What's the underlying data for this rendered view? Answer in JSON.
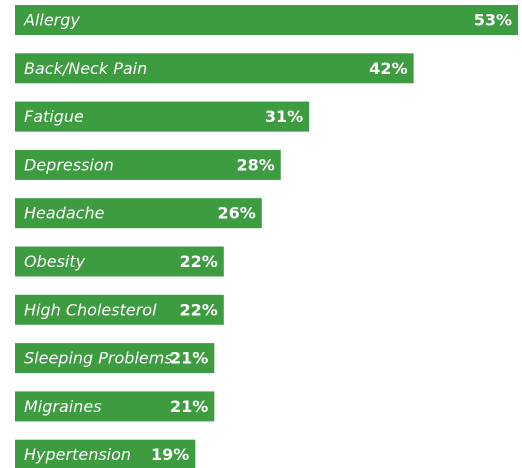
{
  "chart_data": {
    "type": "bar",
    "orientation": "horizontal",
    "categories": [
      "Allergy",
      "Back/Neck Pain",
      "Fatigue",
      "Depression",
      "Headache",
      "Obesity",
      "High Cholesterol",
      "Sleeping Problems",
      "Migraines",
      "Hypertension"
    ],
    "values": [
      53,
      42,
      31,
      28,
      26,
      22,
      22,
      21,
      21,
      19
    ],
    "value_labels": [
      "53%",
      "42%",
      "31%",
      "28%",
      "26%",
      "22%",
      "22%",
      "21%",
      "21%",
      "19%"
    ],
    "color": "#3d9b40"
  }
}
